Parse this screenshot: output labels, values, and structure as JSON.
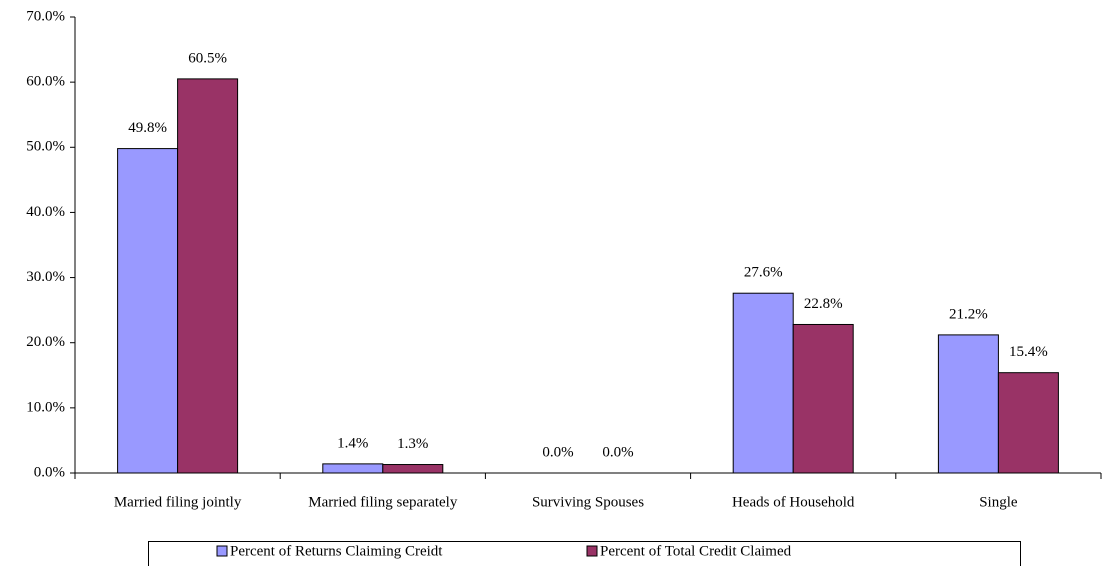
{
  "chart_data": {
    "type": "bar",
    "categories": [
      "Married filing jointly",
      "Married filing separately",
      "Surviving Spouses",
      "Heads of Household",
      "Single"
    ],
    "series": [
      {
        "name": "Percent of Returns Claiming Creidt",
        "color": "#9999ff",
        "values": [
          49.8,
          1.4,
          0.0,
          27.6,
          21.2
        ],
        "value_labels": [
          "49.8%",
          "1.4%",
          "0.0%",
          "27.6%",
          "21.2%"
        ]
      },
      {
        "name": "Percent of Total Credit Claimed",
        "color": "#993366",
        "values": [
          60.5,
          1.3,
          0.0,
          22.8,
          15.4
        ],
        "value_labels": [
          "60.5%",
          "1.3%",
          "0.0%",
          "22.8%",
          "15.4%"
        ]
      }
    ],
    "ylim": [
      0,
      70
    ],
    "yticks": [
      {
        "value": 0,
        "label": "0.0%"
      },
      {
        "value": 10,
        "label": "10.0%"
      },
      {
        "value": 20,
        "label": "20.0%"
      },
      {
        "value": 30,
        "label": "30.0%"
      },
      {
        "value": 40,
        "label": "40.0%"
      },
      {
        "value": 50,
        "label": "50.0%"
      },
      {
        "value": 60,
        "label": "60.0%"
      },
      {
        "value": 70,
        "label": "70.0%"
      }
    ],
    "grid": false,
    "legend": "bottom"
  }
}
